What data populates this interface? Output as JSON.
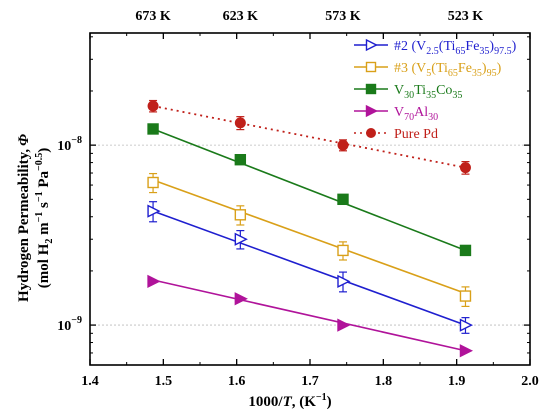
{
  "chart_data": {
    "type": "scatter",
    "title": "",
    "xlabel_main": "1000/",
    "xlabel_var": "T",
    "xlabel_unit": ", (K",
    "xlabel_exp": "−1",
    "xlabel_close": ")",
    "ylabel_line1_main": "Hydrogen Permeability,",
    "ylabel_line1_var": "Φ",
    "ylabel_line2_a": "(mol H",
    "ylabel_line2_sub": "2",
    "ylabel_line2_b": " m",
    "ylabel_line2_exp1": "−1",
    "ylabel_line2_c": " s",
    "ylabel_line2_exp2": "−1",
    "ylabel_line2_d": " Pa",
    "ylabel_line2_exp3": "−0.5",
    "ylabel_line2_e": ")",
    "xlim": [
      1.4,
      2.0
    ],
    "ylim": [
      6e-10,
      4.2e-08
    ],
    "yscale": "log",
    "x_ticks": [
      "1.4",
      "1.5",
      "1.6",
      "1.7",
      "1.8",
      "1.9",
      "2.0"
    ],
    "y_tick_labels": [
      {
        "value": 1e-09,
        "base": "10",
        "exp": "−9"
      },
      {
        "value": 1e-08,
        "base": "10",
        "exp": "−8"
      }
    ],
    "top_axis_labels": [
      {
        "x": 1.486,
        "label": "673 K"
      },
      {
        "x": 1.605,
        "label": "623 K"
      },
      {
        "x": 1.745,
        "label": "573 K"
      },
      {
        "x": 1.912,
        "label": "523 K"
      }
    ],
    "legend_position": "top-right",
    "series": [
      {
        "key": "s2",
        "legend": [
          {
            "t": "#2 (V"
          },
          {
            "t": "2.5",
            "sub": true
          },
          {
            "t": "(Ti"
          },
          {
            "t": "65",
            "sub": true
          },
          {
            "t": "Fe"
          },
          {
            "t": "35",
            "sub": true
          },
          {
            "t": ")"
          },
          {
            "t": "97.5",
            "sub": true
          },
          {
            "t": ")"
          }
        ],
        "color": "#1f1fcf",
        "marker": "triangle-right-open",
        "line": "solid",
        "x": [
          1.486,
          1.605,
          1.745,
          1.912
        ],
        "y": [
          4.3e-09,
          3e-09,
          1.75e-09,
          1e-09
        ],
        "err": [
          5.5e-10,
          3.5e-10,
          2.2e-10,
          1e-10
        ],
        "fit": [
          [
            1.486,
            4.3e-09
          ],
          [
            1.912,
            1e-09
          ]
        ]
      },
      {
        "key": "s3",
        "legend": [
          {
            "t": "#3 (V"
          },
          {
            "t": "5",
            "sub": true
          },
          {
            "t": "(Ti"
          },
          {
            "t": "65",
            "sub": true
          },
          {
            "t": "Fe"
          },
          {
            "t": "35",
            "sub": true
          },
          {
            "t": ")"
          },
          {
            "t": "95",
            "sub": true
          },
          {
            "t": ")"
          }
        ],
        "color": "#d9a019",
        "marker": "square-open",
        "line": "solid",
        "x": [
          1.486,
          1.605,
          1.745,
          1.912
        ],
        "y": [
          6.2e-09,
          4.1e-09,
          2.6e-09,
          1.45e-09
        ],
        "err": [
          7.5e-10,
          5e-10,
          3e-10,
          1.8e-10
        ],
        "fit": [
          [
            1.486,
            6.4e-09
          ],
          [
            1.912,
            1.5e-09
          ]
        ]
      },
      {
        "key": "s4",
        "legend": [
          {
            "t": "V"
          },
          {
            "t": "30",
            "sub": true
          },
          {
            "t": "Ti"
          },
          {
            "t": "35",
            "sub": true
          },
          {
            "t": "Co"
          },
          {
            "t": "35",
            "sub": true
          }
        ],
        "color": "#1a7a1a",
        "marker": "square-filled",
        "line": "solid",
        "x": [
          1.486,
          1.605,
          1.745,
          1.912
        ],
        "y": [
          1.23e-08,
          8.3e-09,
          5e-09,
          2.6e-09
        ],
        "err": [
          0,
          0,
          0,
          0
        ],
        "fit": [
          [
            1.486,
            1.23e-08
          ],
          [
            1.912,
            2.6e-09
          ]
        ]
      },
      {
        "key": "s5",
        "legend": [
          {
            "t": "V"
          },
          {
            "t": "70",
            "sub": true
          },
          {
            "t": "Al"
          },
          {
            "t": "30",
            "sub": true
          }
        ],
        "color": "#b0139a",
        "marker": "triangle-right-filled",
        "line": "solid",
        "x": [
          1.486,
          1.605,
          1.745,
          1.912
        ],
        "y": [
          1.75e-09,
          1.4e-09,
          1e-09,
          7.2e-10
        ],
        "err": [
          0,
          0,
          0,
          0
        ],
        "fit": [
          [
            1.486,
            1.78e-09
          ],
          [
            1.912,
            7.2e-10
          ]
        ]
      },
      {
        "key": "pd",
        "legend": [
          {
            "t": "Pure Pd"
          }
        ],
        "color": "#c0201a",
        "marker": "circle-filled",
        "line": "dotted",
        "x": [
          1.486,
          1.605,
          1.745,
          1.912
        ],
        "y": [
          1.65e-08,
          1.33e-08,
          1e-08,
          7.5e-09
        ],
        "err": [
          1.2e-09,
          1.1e-09,
          7e-10,
          6e-10
        ],
        "fit": [
          [
            1.486,
            1.65e-08
          ],
          [
            1.912,
            7.5e-09
          ]
        ]
      }
    ]
  }
}
